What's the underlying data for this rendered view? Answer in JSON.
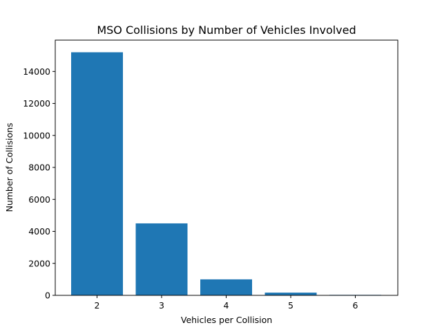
{
  "chart_data": {
    "type": "bar",
    "title": "MSO Collisions by Number of Vehicles Involved",
    "xlabel": "Vehicles per Collision",
    "ylabel": "Number of Collisions",
    "categories": [
      "2",
      "3",
      "4",
      "5",
      "6"
    ],
    "values": [
      15200,
      4500,
      1000,
      170,
      30
    ],
    "ylim": [
      0,
      15960
    ],
    "yticks": [
      0,
      2000,
      4000,
      6000,
      8000,
      10000,
      12000,
      14000
    ],
    "bar_color": "#1f77b4",
    "grid": false,
    "legend": "none"
  }
}
